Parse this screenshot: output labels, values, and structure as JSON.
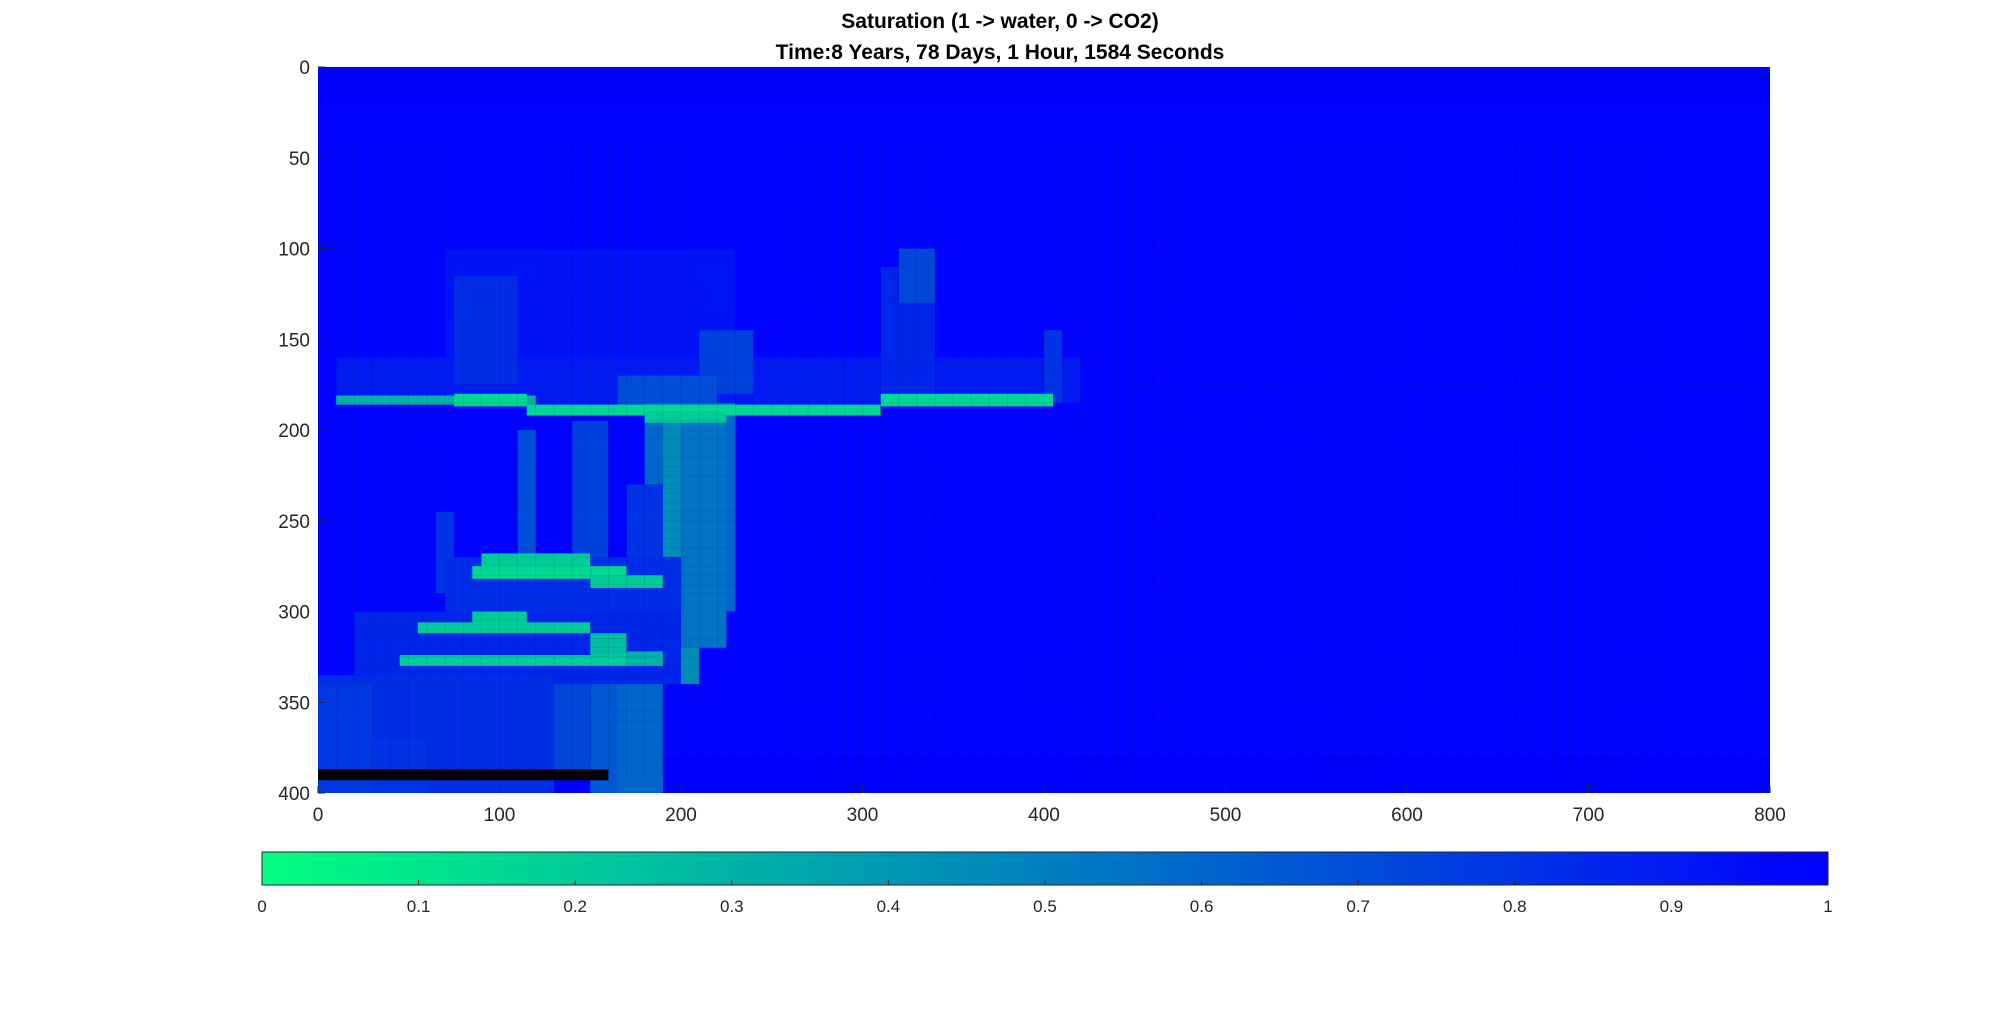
{
  "chart_data": {
    "type": "heatmap",
    "title": "Saturation (1 -> water, 0 -> CO2)",
    "subtitle": "Time:8 Years, 78 Days, 1 Hour, 1584 Seconds",
    "xlabel": "",
    "ylabel": "",
    "xlim": [
      0,
      800
    ],
    "ylim": [
      400,
      0
    ],
    "x_axis_direction": "normal",
    "y_axis_direction": "reverse",
    "x_ticks": [
      "0",
      "100",
      "200",
      "300",
      "400",
      "500",
      "600",
      "700",
      "800"
    ],
    "x_tick_values": [
      0,
      100,
      200,
      300,
      400,
      500,
      600,
      700,
      800
    ],
    "y_ticks": [
      "0",
      "50",
      "100",
      "150",
      "200",
      "250",
      "300",
      "350",
      "400"
    ],
    "y_tick_values": [
      0,
      50,
      100,
      150,
      200,
      250,
      300,
      350,
      400
    ],
    "colormap": "winter",
    "colormap_low": "#00ff80",
    "colormap_high": "#0000ff",
    "background_value": 1.0,
    "inactive_color": "#000000",
    "colorbar": {
      "orientation": "horizontal",
      "location": "bottom",
      "range": [
        0,
        1
      ],
      "ticks": [
        "0",
        "0.1",
        "0.2",
        "0.3",
        "0.4",
        "0.5",
        "0.6",
        "0.7",
        "0.8",
        "0.9",
        "1"
      ],
      "tick_values": [
        0,
        0.1,
        0.2,
        0.3,
        0.4,
        0.5,
        0.6,
        0.7,
        0.8,
        0.9,
        1.0
      ]
    },
    "regions": [
      {
        "x": [
          0,
          800
        ],
        "y": [
          0,
          400
        ],
        "value": 1.0
      },
      {
        "x": [
          0,
          800
        ],
        "y": [
          20,
          380
        ],
        "value": 0.99
      },
      {
        "x": [
          70,
          230
        ],
        "y": [
          100,
          180
        ],
        "value": 0.93
      },
      {
        "x": [
          10,
          420
        ],
        "y": [
          160,
          185
        ],
        "value": 0.9
      },
      {
        "x": [
          310,
          340
        ],
        "y": [
          110,
          180
        ],
        "value": 0.85
      },
      {
        "x": [
          320,
          340
        ],
        "y": [
          100,
          130
        ],
        "value": 0.72
      },
      {
        "x": [
          400,
          410
        ],
        "y": [
          145,
          185
        ],
        "value": 0.8
      },
      {
        "x": [
          75,
          110
        ],
        "y": [
          115,
          175
        ],
        "value": 0.82
      },
      {
        "x": [
          210,
          240
        ],
        "y": [
          145,
          180
        ],
        "value": 0.75
      },
      {
        "x": [
          165,
          220
        ],
        "y": [
          170,
          190
        ],
        "value": 0.7
      },
      {
        "x": [
          140,
          160
        ],
        "y": [
          195,
          275
        ],
        "value": 0.75
      },
      {
        "x": [
          110,
          120
        ],
        "y": [
          200,
          270
        ],
        "value": 0.7
      },
      {
        "x": [
          180,
          230
        ],
        "y": [
          185,
          300
        ],
        "value": 0.6
      },
      {
        "x": [
          190,
          210
        ],
        "y": [
          190,
          340
        ],
        "value": 0.45
      },
      {
        "x": [
          200,
          225
        ],
        "y": [
          195,
          320
        ],
        "value": 0.55
      },
      {
        "x": [
          170,
          190
        ],
        "y": [
          230,
          300
        ],
        "value": 0.8
      },
      {
        "x": [
          65,
          75
        ],
        "y": [
          245,
          290
        ],
        "value": 0.8
      },
      {
        "x": [
          70,
          200
        ],
        "y": [
          270,
          305
        ],
        "value": 0.82
      },
      {
        "x": [
          160,
          190
        ],
        "y": [
          300,
          400
        ],
        "value": 0.6
      },
      {
        "x": [
          150,
          165
        ],
        "y": [
          335,
          400
        ],
        "value": 0.65
      },
      {
        "x": [
          130,
          150
        ],
        "y": [
          330,
          390
        ],
        "value": 0.72
      },
      {
        "x": [
          115,
          130
        ],
        "y": [
          365,
          395
        ],
        "value": 0.7
      },
      {
        "x": [
          20,
          200
        ],
        "y": [
          300,
          340
        ],
        "value": 0.85
      },
      {
        "x": [
          0,
          130
        ],
        "y": [
          335,
          400
        ],
        "value": 0.82
      },
      {
        "x": [
          0,
          30
        ],
        "y": [
          340,
          400
        ],
        "value": 0.78
      },
      {
        "x": [
          30,
          60
        ],
        "y": [
          370,
          400
        ],
        "value": 0.8
      },
      {
        "x": [
          10,
          120
        ],
        "y": [
          181,
          186
        ],
        "value": 0.3
      },
      {
        "x": [
          75,
          115
        ],
        "y": [
          180,
          187
        ],
        "value": 0.15
      },
      {
        "x": [
          115,
          310
        ],
        "y": [
          186,
          192
        ],
        "value": 0.15
      },
      {
        "x": [
          180,
          225
        ],
        "y": [
          190,
          196
        ],
        "value": 0.2
      },
      {
        "x": [
          310,
          405
        ],
        "y": [
          180,
          187
        ],
        "value": 0.15
      },
      {
        "x": [
          90,
          150
        ],
        "y": [
          268,
          280
        ],
        "value": 0.2
      },
      {
        "x": [
          85,
          170
        ],
        "y": [
          275,
          282
        ],
        "value": 0.15
      },
      {
        "x": [
          150,
          190
        ],
        "y": [
          280,
          287
        ],
        "value": 0.2
      },
      {
        "x": [
          85,
          115
        ],
        "y": [
          300,
          307
        ],
        "value": 0.2
      },
      {
        "x": [
          55,
          150
        ],
        "y": [
          306,
          312
        ],
        "value": 0.2
      },
      {
        "x": [
          150,
          170
        ],
        "y": [
          312,
          326
        ],
        "value": 0.25
      },
      {
        "x": [
          45,
          190
        ],
        "y": [
          324,
          330
        ],
        "value": 0.2
      },
      {
        "x": [
          170,
          190
        ],
        "y": [
          322,
          330
        ],
        "value": 0.3
      }
    ],
    "inactive_cells": [
      {
        "x": [
          0,
          160
        ],
        "y": [
          387,
          393
        ]
      }
    ]
  }
}
